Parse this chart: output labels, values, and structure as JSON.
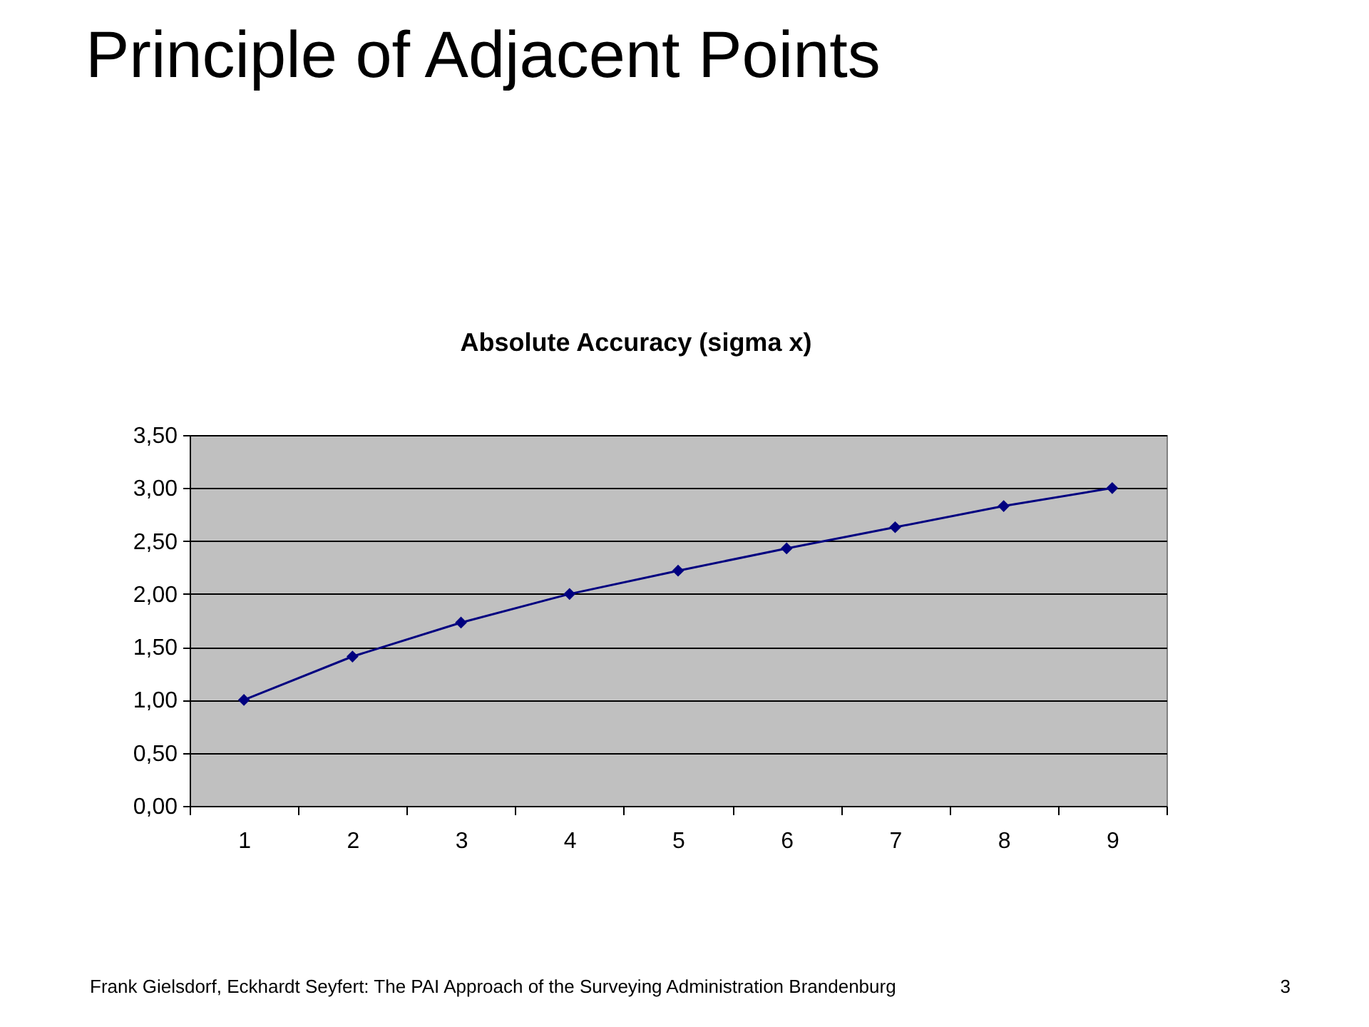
{
  "chart_data": {
    "type": "line",
    "title": "Principle of Adjacent Points",
    "subtitle": "Absolute Accuracy (sigma x)",
    "categories": [
      "1",
      "2",
      "3",
      "4",
      "5",
      "6",
      "7",
      "8",
      "9"
    ],
    "series": [
      {
        "color": "#000080",
        "values": [
          1.0,
          1.41,
          1.73,
          2.0,
          2.22,
          2.43,
          2.63,
          2.83,
          3.0
        ]
      }
    ],
    "ylim": [
      0,
      3.5
    ],
    "yticks": [
      {
        "value": 0,
        "label": "0,00"
      },
      {
        "value": 0.5,
        "label": "0,50"
      },
      {
        "value": 1,
        "label": "1,00"
      },
      {
        "value": 1.5,
        "label": "1,50"
      },
      {
        "value": 2,
        "label": "2,00"
      },
      {
        "value": 2.5,
        "label": "2,50"
      },
      {
        "value": 3,
        "label": "3,00"
      },
      {
        "value": 3.5,
        "label": "3,50"
      }
    ],
    "grid": "y",
    "marker": "diamond",
    "line_style": "solid",
    "annotations": [
      "Frank Gielsdorf, Eckhardt Seyfert: The PAI Approach of the Surveying Administration Brandenburg",
      "3"
    ]
  }
}
